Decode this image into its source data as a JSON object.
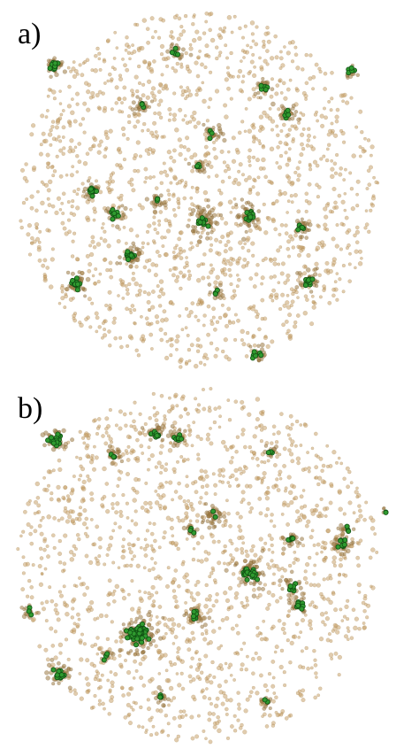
{
  "figure": {
    "panels": [
      {
        "id": "a",
        "label": "a)"
      },
      {
        "id": "b",
        "label": "b)"
      }
    ]
  },
  "colors": {
    "particle": "#c9a36b",
    "particle_edge": "#9c7a44",
    "cluster": "#2f9a2f",
    "cluster_edge": "#0f4f12",
    "background": "#ffffff"
  }
}
